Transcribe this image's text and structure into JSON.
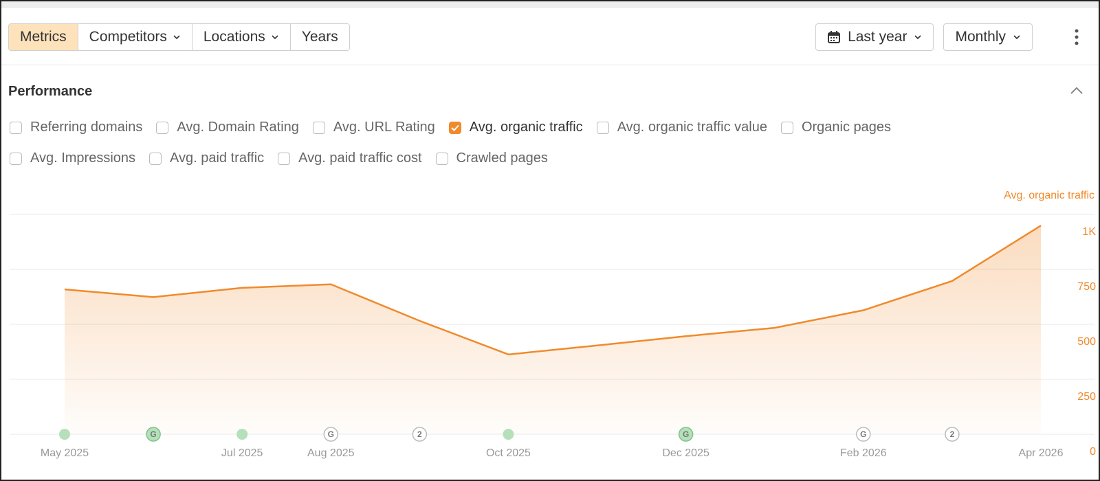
{
  "toolbar": {
    "tabs": [
      {
        "label": "Metrics",
        "dropdown": false
      },
      {
        "label": "Competitors",
        "dropdown": true
      },
      {
        "label": "Locations",
        "dropdown": true
      },
      {
        "label": "Years",
        "dropdown": false
      }
    ],
    "active": 0,
    "date_range": "Last year",
    "interval": "Monthly"
  },
  "section": {
    "title": "Performance",
    "metrics": [
      [
        {
          "label": "Referring domains",
          "checked": false
        },
        {
          "label": "Avg. Domain Rating",
          "checked": false
        },
        {
          "label": "Avg. URL Rating",
          "checked": false
        },
        {
          "label": "Avg. organic traffic",
          "checked": true
        },
        {
          "label": "Avg. organic traffic value",
          "checked": false
        },
        {
          "label": "Organic pages",
          "checked": false
        }
      ],
      [
        {
          "label": "Avg. Impressions",
          "checked": false
        },
        {
          "label": "Avg. paid traffic",
          "checked": false
        },
        {
          "label": "Avg. paid traffic cost",
          "checked": false
        },
        {
          "label": "Crawled pages",
          "checked": false
        }
      ]
    ]
  },
  "chart_data": {
    "type": "area",
    "categories": [
      "May 2025",
      null,
      "Jul 2025",
      "Aug 2025",
      null,
      "Oct 2025",
      null,
      "Dec 2025",
      null,
      "Feb 2026",
      null,
      "Apr 2026"
    ],
    "series": [
      {
        "name": "Avg. organic traffic",
        "color": "#f08a2c",
        "values": [
          659,
          624,
          666,
          682,
          516,
          363,
          404,
          446,
          484,
          564,
          697,
          949
        ]
      }
    ],
    "ylim": [
      0,
      1000
    ],
    "yticks": [
      0,
      250,
      500,
      750,
      {
        "value": 1000,
        "label": "1K"
      }
    ],
    "grid": true,
    "y_axis_side": "right",
    "annotations": [
      {
        "index": 0,
        "kind": "dot",
        "color": "green"
      },
      {
        "index": 1,
        "label": "G",
        "color": "green"
      },
      {
        "index": 2,
        "kind": "dot",
        "color": "green"
      },
      {
        "index": 3,
        "label": "G",
        "color": "gray"
      },
      {
        "index": 4,
        "label": "2",
        "color": "gray"
      },
      {
        "index": 5,
        "kind": "dot",
        "color": "green"
      },
      {
        "index": 7,
        "label": "G",
        "color": "green"
      },
      {
        "index": 9,
        "label": "G",
        "color": "gray"
      },
      {
        "index": 10,
        "label": "2",
        "color": "gray"
      }
    ]
  }
}
